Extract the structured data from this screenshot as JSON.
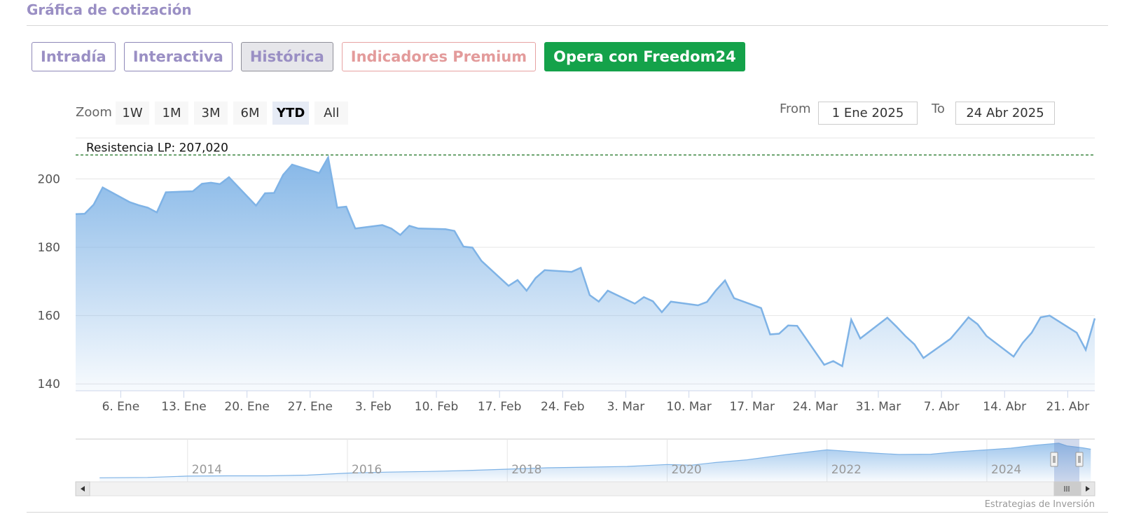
{
  "header": {
    "title": "Gráfica de cotización"
  },
  "tabs": [
    {
      "label": "Intradía",
      "style": "normal"
    },
    {
      "label": "Interactiva",
      "style": "normal"
    },
    {
      "label": "Histórica",
      "style": "active"
    },
    {
      "label": "Indicadores Premium",
      "style": "premium"
    },
    {
      "label": "Opera con Freedom24",
      "style": "freedom"
    }
  ],
  "zoom": {
    "label": "Zoom",
    "buttons": [
      "1W",
      "1M",
      "3M",
      "6M",
      "YTD",
      "All"
    ],
    "selected": "YTD"
  },
  "range": {
    "from_label": "From",
    "from_value": "1 Ene 2025",
    "to_label": "To",
    "to_value": "24 Abr 2025"
  },
  "chart_data": {
    "type": "area",
    "resistance": {
      "label": "Resistencia LP: 207,020",
      "value": 207.02,
      "color": "#2e7d32"
    },
    "series_color": "#7fb3e6",
    "ylim": [
      138,
      212
    ],
    "y_ticks": [
      140,
      160,
      180,
      200
    ],
    "xlim": [
      0,
      113
    ],
    "x_ticks": [
      {
        "label": "6. Ene",
        "x": 5
      },
      {
        "label": "13. Ene",
        "x": 12
      },
      {
        "label": "20. Ene",
        "x": 19
      },
      {
        "label": "27. Ene",
        "x": 26
      },
      {
        "label": "3. Feb",
        "x": 33
      },
      {
        "label": "10. Feb",
        "x": 40
      },
      {
        "label": "17. Feb",
        "x": 47
      },
      {
        "label": "24. Feb",
        "x": 54
      },
      {
        "label": "3. Mar",
        "x": 61
      },
      {
        "label": "10. Mar",
        "x": 68
      },
      {
        "label": "17. Mar",
        "x": 75
      },
      {
        "label": "24. Mar",
        "x": 82
      },
      {
        "label": "31. Mar",
        "x": 89
      },
      {
        "label": "7. Abr",
        "x": 96
      },
      {
        "label": "14. Abr",
        "x": 103
      },
      {
        "label": "21. Abr",
        "x": 110
      }
    ],
    "x": [
      0,
      1,
      2,
      3,
      6,
      7,
      8,
      9,
      10,
      13,
      14,
      15,
      16,
      17,
      20,
      21,
      22,
      23,
      24,
      27,
      28,
      29,
      30,
      31,
      34,
      35,
      36,
      37,
      38,
      41,
      42,
      43,
      44,
      45,
      48,
      49,
      50,
      51,
      52,
      55,
      56,
      57,
      58,
      59,
      62,
      63,
      64,
      65,
      66,
      69,
      70,
      71,
      72,
      73,
      76,
      77,
      78,
      79,
      80,
      83,
      84,
      85,
      86,
      87,
      90,
      91,
      92,
      93,
      94,
      97,
      98,
      99,
      100,
      101,
      104,
      105,
      106,
      107,
      108,
      111,
      112,
      113
    ],
    "values": [
      189.7,
      189.8,
      192.5,
      197.5,
      193.2,
      192.3,
      191.6,
      190.2,
      196.1,
      196.4,
      198.6,
      198.9,
      198.5,
      200.5,
      192.2,
      195.8,
      195.9,
      201.2,
      204.2,
      201.7,
      206.3,
      191.6,
      191.9,
      185.5,
      186.5,
      185.5,
      183.6,
      186.3,
      185.5,
      185.3,
      184.8,
      180.2,
      179.9,
      176.0,
      168.7,
      170.4,
      167.3,
      171.0,
      173.3,
      172.8,
      174.0,
      166.0,
      164.1,
      167.3,
      163.5,
      165.4,
      164.2,
      161.0,
      164.1,
      163.0,
      164.0,
      167.4,
      170.3,
      165.1,
      162.2,
      154.5,
      154.7,
      157.1,
      157.0,
      145.6,
      146.7,
      145.2,
      158.8,
      153.3,
      159.4,
      156.8,
      154.0,
      151.6,
      147.6,
      153.2,
      156.3,
      159.5,
      157.5,
      154.0,
      148.0,
      152.0,
      155.0,
      159.5,
      160.0,
      155.0,
      150.0,
      159.2
    ]
  },
  "navigator": {
    "year_labels": [
      "2014",
      "2016",
      "2018",
      "2020",
      "2022",
      "2024"
    ],
    "x": [
      2012.9,
      2013.5,
      2014.0,
      2014.5,
      2015.0,
      2015.5,
      2016.0,
      2016.5,
      2017.0,
      2017.5,
      2018.0,
      2018.5,
      2019.0,
      2019.5,
      2020.0,
      2020.3,
      2020.6,
      2021.0,
      2021.5,
      2022.0,
      2022.3,
      2022.6,
      2022.9,
      2023.3,
      2023.6,
      2024.0,
      2024.3,
      2024.6,
      2024.9,
      2025.0,
      2025.2,
      2025.3
    ],
    "values": [
      12,
      13,
      17,
      18,
      18,
      20,
      26,
      29,
      31,
      34,
      38,
      42,
      44,
      46,
      52,
      50,
      58,
      66,
      82,
      96,
      91,
      86,
      82,
      83,
      90,
      96,
      101,
      110,
      116,
      108,
      102,
      98
    ]
  },
  "credit": "Estrategias de Inversión"
}
